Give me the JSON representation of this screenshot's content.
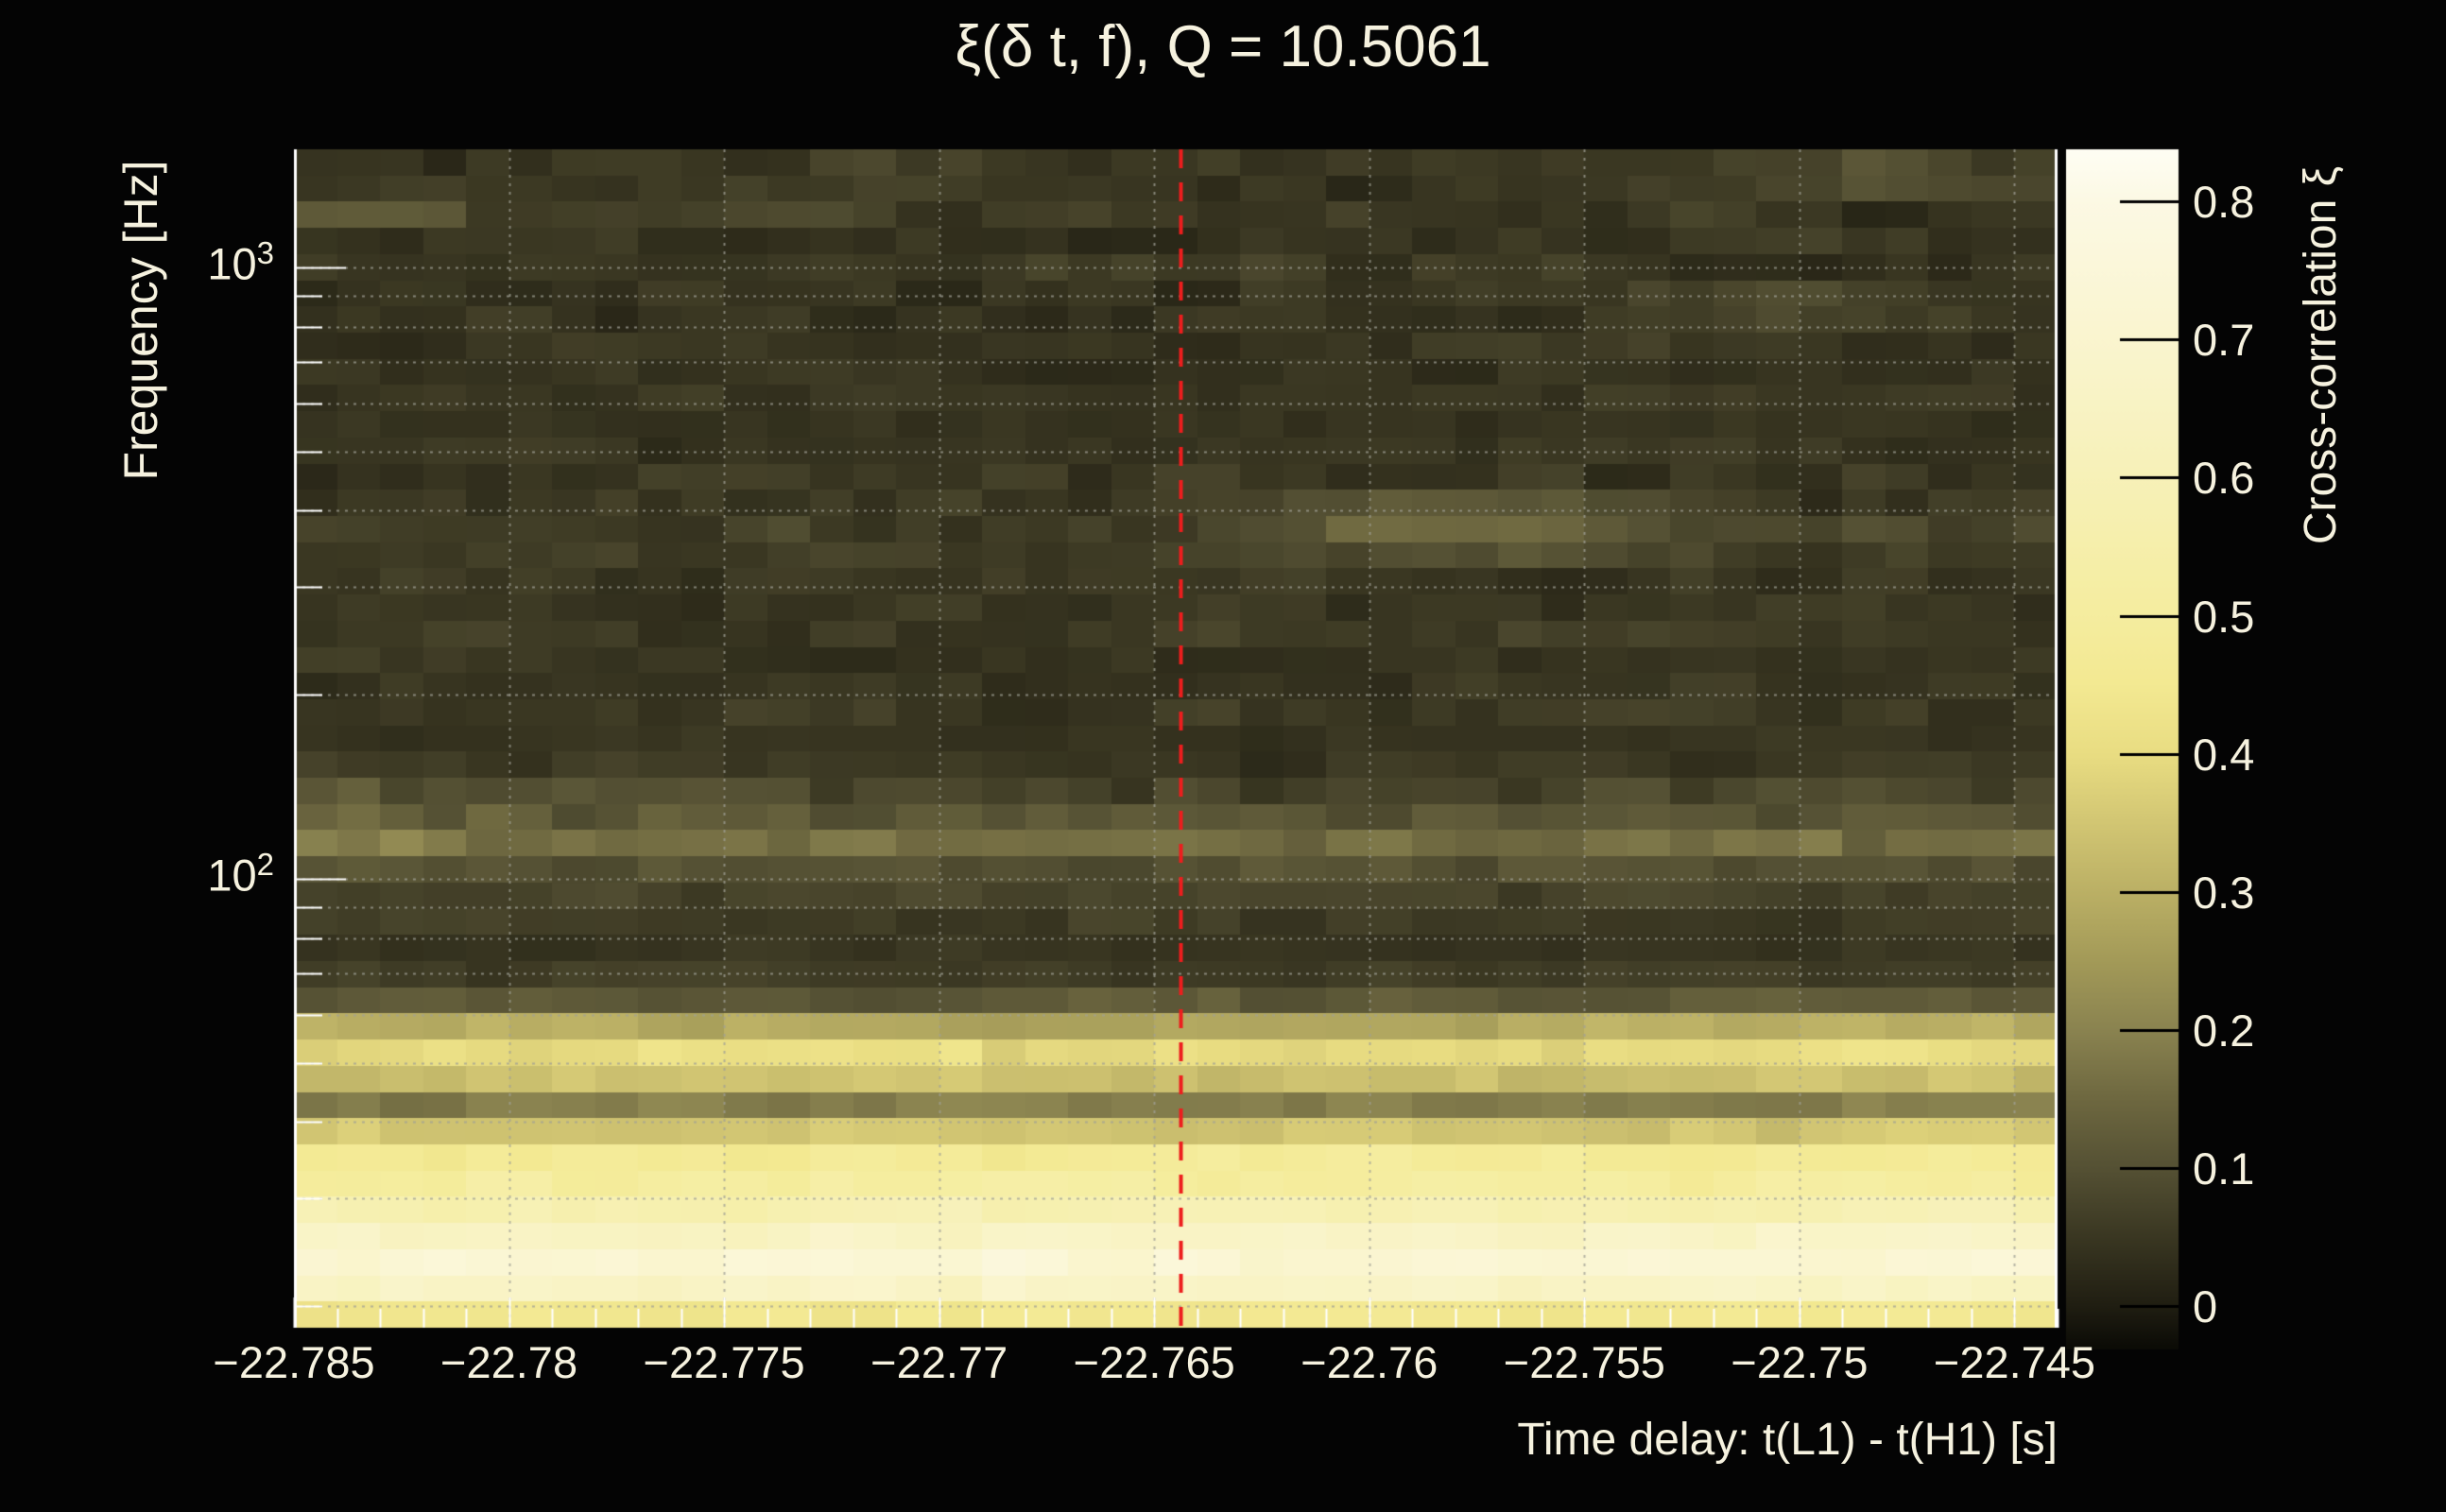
{
  "title": "ξ(δ t, f), Q = 10.5061",
  "chart_data": {
    "type": "heatmap",
    "title": "ξ(δ t, f), Q = 10.5061",
    "xlabel": "Time delay: t(L1) - t(H1) [s]",
    "ylabel": "Frequency [Hz]",
    "colorbar_label": "Cross-correlation ξ",
    "x_range_s": [
      -22.785,
      -22.744
    ],
    "y_range_hz": [
      18.4,
      1560
    ],
    "y_scale": "log",
    "value_range": [
      -0.031,
      0.838
    ],
    "grid_on": true,
    "n_cols": 41,
    "n_rows": 45,
    "col_dt_s": 0.001,
    "x_ticks": [
      {
        "label": "−22.785",
        "value": -22.785
      },
      {
        "label": "−22.78",
        "value": -22.78
      },
      {
        "label": "−22.775",
        "value": -22.775
      },
      {
        "label": "−22.77",
        "value": -22.77
      },
      {
        "label": "−22.765",
        "value": -22.765
      },
      {
        "label": "−22.76",
        "value": -22.76
      },
      {
        "label": "−22.755",
        "value": -22.755
      },
      {
        "label": "−22.75",
        "value": -22.75
      },
      {
        "label": "−22.745",
        "value": -22.745
      }
    ],
    "x_minor_tick_step_s": 0.001,
    "y_ticks": [
      {
        "base": "10",
        "exp": "3",
        "hz": 1000
      },
      {
        "base": "10",
        "exp": "2",
        "hz": 100
      }
    ],
    "y_minor_ticks_hz": [
      900,
      800,
      700,
      600,
      500,
      400,
      300,
      200,
      90,
      80,
      70,
      60,
      50,
      40,
      30,
      20
    ],
    "colorbar_ticks": [
      {
        "label": "0.8",
        "value": 0.8
      },
      {
        "label": "0.7",
        "value": 0.7
      },
      {
        "label": "0.6",
        "value": 0.6
      },
      {
        "label": "0.5",
        "value": 0.5
      },
      {
        "label": "0.4",
        "value": 0.4
      },
      {
        "label": "0.3",
        "value": 0.3
      },
      {
        "label": "0.2",
        "value": 0.2
      },
      {
        "label": "0.1",
        "value": 0.1
      },
      {
        "label": "0",
        "value": 0.0
      }
    ],
    "colormap_stops": [
      [
        -0.031,
        "#0b0b06"
      ],
      [
        0.0,
        "#201e12"
      ],
      [
        0.05,
        "#3a3722"
      ],
      [
        0.1,
        "#555134"
      ],
      [
        0.15,
        "#6e6840"
      ],
      [
        0.2,
        "#8a8350"
      ],
      [
        0.25,
        "#a39a58"
      ],
      [
        0.3,
        "#bbb065"
      ],
      [
        0.35,
        "#d2c673"
      ],
      [
        0.4,
        "#e9dd82"
      ],
      [
        0.45,
        "#f3e992"
      ],
      [
        0.5,
        "#f5ed9f"
      ],
      [
        0.55,
        "#f6efab"
      ],
      [
        0.6,
        "#f7f1b8"
      ],
      [
        0.7,
        "#faf5cf"
      ],
      [
        0.8,
        "#fcf9e4"
      ],
      [
        0.843,
        "#fffef4"
      ]
    ],
    "marker_line": {
      "x_s": -22.7644,
      "color": "#ee1d1d",
      "style": "dashed"
    },
    "grid_color": "#9a9a90",
    "axis_text_color": "#f6f2df",
    "row_profile_xi_top_to_bottom": [
      {
        "xi": 0.05,
        "noise": 0.04
      },
      {
        "xi": 0.05,
        "noise": 0.035
      },
      {
        "xi": 0.055,
        "noise": 0.04
      },
      {
        "xi": 0.045,
        "noise": 0.03
      },
      {
        "xi": 0.05,
        "noise": 0.035
      },
      {
        "xi": 0.045,
        "noise": 0.03
      },
      {
        "xi": 0.04,
        "noise": 0.03
      },
      {
        "xi": 0.045,
        "noise": 0.03
      },
      {
        "xi": 0.04,
        "noise": 0.025
      },
      {
        "xi": 0.045,
        "noise": 0.025
      },
      {
        "xi": 0.04,
        "noise": 0.02
      },
      {
        "xi": 0.045,
        "noise": 0.025
      },
      {
        "xi": 0.05,
        "noise": 0.03
      },
      {
        "xi": 0.055,
        "noise": 0.035
      },
      {
        "xi": 0.065,
        "noise": 0.035
      },
      {
        "xi": 0.055,
        "noise": 0.03
      },
      {
        "xi": 0.05,
        "noise": 0.03
      },
      {
        "xi": 0.05,
        "noise": 0.03
      },
      {
        "xi": 0.055,
        "noise": 0.03
      },
      {
        "xi": 0.045,
        "noise": 0.025
      },
      {
        "xi": 0.045,
        "noise": 0.025
      },
      {
        "xi": 0.05,
        "noise": 0.03
      },
      {
        "xi": 0.04,
        "noise": 0.02
      },
      {
        "xi": 0.05,
        "noise": 0.03
      },
      {
        "xi": 0.075,
        "noise": 0.04
      },
      {
        "xi": 0.11,
        "noise": 0.035
      },
      {
        "xi": 0.16,
        "noise": 0.04
      },
      {
        "xi": 0.1,
        "noise": 0.03
      },
      {
        "xi": 0.07,
        "noise": 0.025
      },
      {
        "xi": 0.06,
        "noise": 0.02
      },
      {
        "xi": 0.045,
        "noise": 0.015
      },
      {
        "xi": 0.06,
        "noise": 0.02
      },
      {
        "xi": 0.12,
        "noise": 0.03
      },
      {
        "xi": 0.28,
        "noise": 0.04
      },
      {
        "xi": 0.4,
        "noise": 0.04
      },
      {
        "xi": 0.33,
        "noise": 0.035
      },
      {
        "xi": 0.19,
        "noise": 0.03
      },
      {
        "xi": 0.35,
        "noise": 0.035
      },
      {
        "xi": 0.47,
        "noise": 0.035
      },
      {
        "xi": 0.5,
        "noise": 0.035
      },
      {
        "xi": 0.58,
        "noise": 0.04
      },
      {
        "xi": 0.66,
        "noise": 0.04
      },
      {
        "xi": 0.72,
        "noise": 0.045
      },
      {
        "xi": 0.66,
        "noise": 0.045
      },
      {
        "xi": 0.44,
        "noise": 0.03
      }
    ],
    "bright_patches": [
      {
        "rows": {
          "13": 0.07,
          "14": 0.11,
          "15": 0.05
        },
        "col_center": 27,
        "col_sigma": 4.5,
        "col_range": [
          20,
          34
        ]
      },
      {
        "rows": {
          "0": 0.05,
          "1": 0.04
        },
        "col_center": 36,
        "col_sigma": 3.0,
        "col_range": [
          31,
          40
        ]
      },
      {
        "rows": {
          "5": 0.05,
          "6": 0.04
        },
        "col_center": 34,
        "col_sigma": 3.0,
        "col_range": [
          30,
          39
        ]
      }
    ],
    "left_edge_boost": {
      "rows": {
        "2": 0.05,
        "23": 0.02,
        "24": 0.03,
        "25": 0.035,
        "26": 0.045
      },
      "fade_cols": 7
    }
  }
}
